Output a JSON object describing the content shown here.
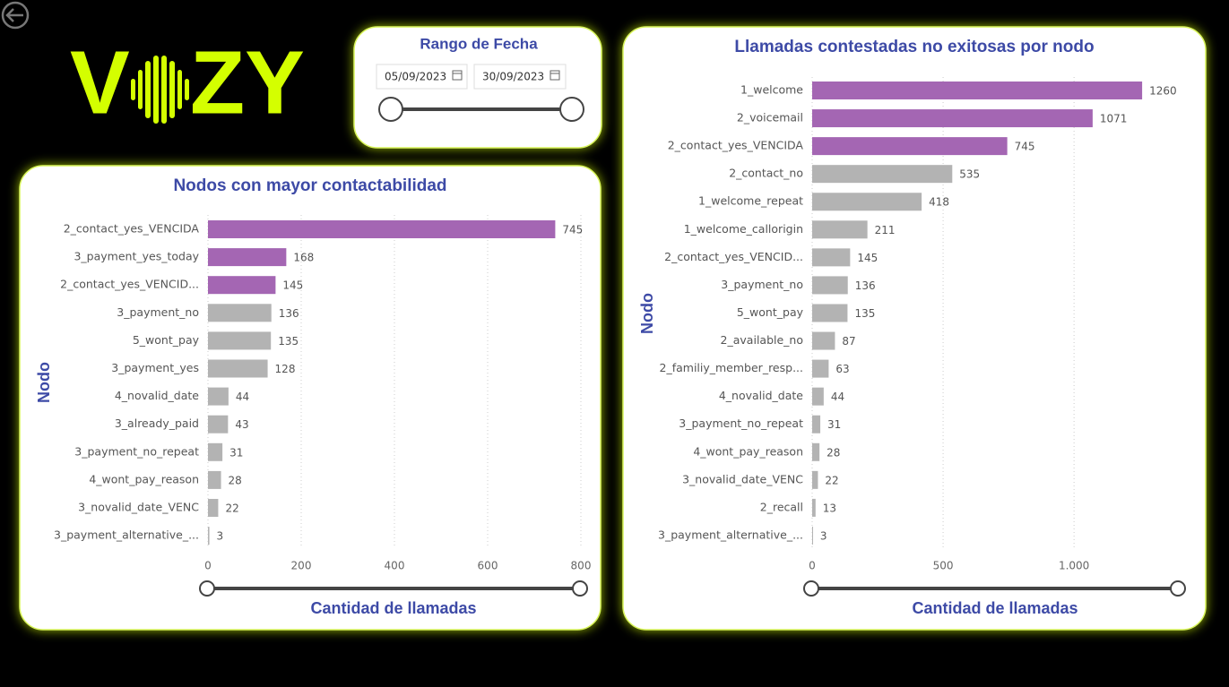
{
  "logo": {
    "left": "V",
    "right": "ZY"
  },
  "date_filter": {
    "title": "Rango de Fecha",
    "start": "05/09/2023",
    "end": "30/09/2023"
  },
  "chart_data": [
    {
      "type": "hbar",
      "title": "Nodos con mayor contactabilidad",
      "x_label": "Cantidad de llamadas",
      "y_label": "Nodo",
      "categories": [
        "2_contact_yes_VENCIDA",
        "3_payment_yes_today",
        "2_contact_yes_VENCID...",
        "3_payment_no",
        "5_wont_pay",
        "3_payment_yes",
        "4_novalid_date",
        "3_already_paid",
        "3_payment_no_repeat",
        "4_wont_pay_reason",
        "3_novalid_date_VENC",
        "3_payment_alternative_..."
      ],
      "values": [
        745,
        168,
        145,
        136,
        135,
        128,
        44,
        43,
        31,
        28,
        22,
        3
      ],
      "colors": [
        "#a466b3",
        "#a466b3",
        "#a466b3",
        "#b3b3b3",
        "#b3b3b3",
        "#b3b3b3",
        "#b3b3b3",
        "#b3b3b3",
        "#b3b3b3",
        "#b3b3b3",
        "#b3b3b3",
        "#b3b3b3"
      ],
      "xlim": [
        0,
        800
      ],
      "xticks": [
        0,
        200,
        400,
        600,
        800
      ],
      "grid": true
    },
    {
      "type": "hbar",
      "title": "Llamadas contestadas no exitosas por nodo",
      "x_label": "Cantidad de llamadas",
      "y_label": "Nodo",
      "categories": [
        "1_welcome",
        "2_voicemail",
        "2_contact_yes_VENCIDA",
        "2_contact_no",
        "1_welcome_repeat",
        "1_welcome_callorigin",
        "2_contact_yes_VENCID...",
        "3_payment_no",
        "5_wont_pay",
        "2_available_no",
        "2_familiy_member_resp...",
        "4_novalid_date",
        "3_payment_no_repeat",
        "4_wont_pay_reason",
        "3_novalid_date_VENC",
        "2_recall",
        "3_payment_alternative_..."
      ],
      "values": [
        1260,
        1071,
        745,
        535,
        418,
        211,
        145,
        136,
        135,
        87,
        63,
        44,
        31,
        28,
        22,
        13,
        3
      ],
      "colors": [
        "#a466b3",
        "#a466b3",
        "#a466b3",
        "#b3b3b3",
        "#b3b3b3",
        "#b3b3b3",
        "#b3b3b3",
        "#b3b3b3",
        "#b3b3b3",
        "#b3b3b3",
        "#b3b3b3",
        "#b3b3b3",
        "#b3b3b3",
        "#b3b3b3",
        "#b3b3b3",
        "#b3b3b3",
        "#b3b3b3"
      ],
      "xlim": [
        0,
        1400
      ],
      "xticks": [
        0,
        500,
        {
          "value": 1000,
          "label": "1.000"
        }
      ],
      "grid": true
    }
  ]
}
